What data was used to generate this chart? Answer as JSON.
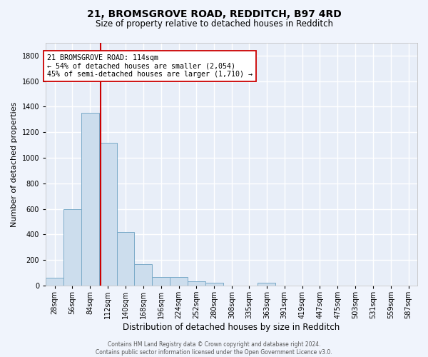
{
  "title": "21, BROMSGROVE ROAD, REDDITCH, B97 4RD",
  "subtitle": "Size of property relative to detached houses in Redditch",
  "xlabel": "Distribution of detached houses by size in Redditch",
  "ylabel": "Number of detached properties",
  "bar_values": [
    60,
    600,
    1350,
    1120,
    420,
    170,
    65,
    65,
    35,
    20,
    0,
    0,
    20,
    0,
    0,
    0,
    0,
    0,
    0,
    0
  ],
  "bin_labels": [
    "28sqm",
    "56sqm",
    "84sqm",
    "112sqm",
    "140sqm",
    "168sqm",
    "196sqm",
    "224sqm",
    "252sqm",
    "280sqm",
    "308sqm",
    "335sqm",
    "363sqm",
    "391sqm",
    "419sqm",
    "447sqm",
    "475sqm",
    "503sqm",
    "531sqm",
    "559sqm",
    "587sqm"
  ],
  "bin_edges": [
    28,
    56,
    84,
    112,
    140,
    168,
    196,
    224,
    252,
    280,
    308,
    335,
    363,
    391,
    419,
    447,
    475,
    503,
    531,
    559,
    587
  ],
  "bar_color": "#ccdded",
  "bar_edge_color": "#7aaac8",
  "bg_color": "#e8eef8",
  "grid_color": "#ffffff",
  "vline_x": 114,
  "vline_color": "#cc0000",
  "annotation_text": "21 BROMSGROVE ROAD: 114sqm\n← 54% of detached houses are smaller (2,054)\n45% of semi-detached houses are larger (1,710) →",
  "annotation_box_color": "#ffffff",
  "annotation_box_edge": "#cc0000",
  "ylim": [
    0,
    1900
  ],
  "yticks": [
    0,
    200,
    400,
    600,
    800,
    1000,
    1200,
    1400,
    1600,
    1800
  ],
  "footnote": "Contains HM Land Registry data © Crown copyright and database right 2024.\nContains public sector information licensed under the Open Government Licence v3.0.",
  "fig_bg": "#f0f4fc"
}
